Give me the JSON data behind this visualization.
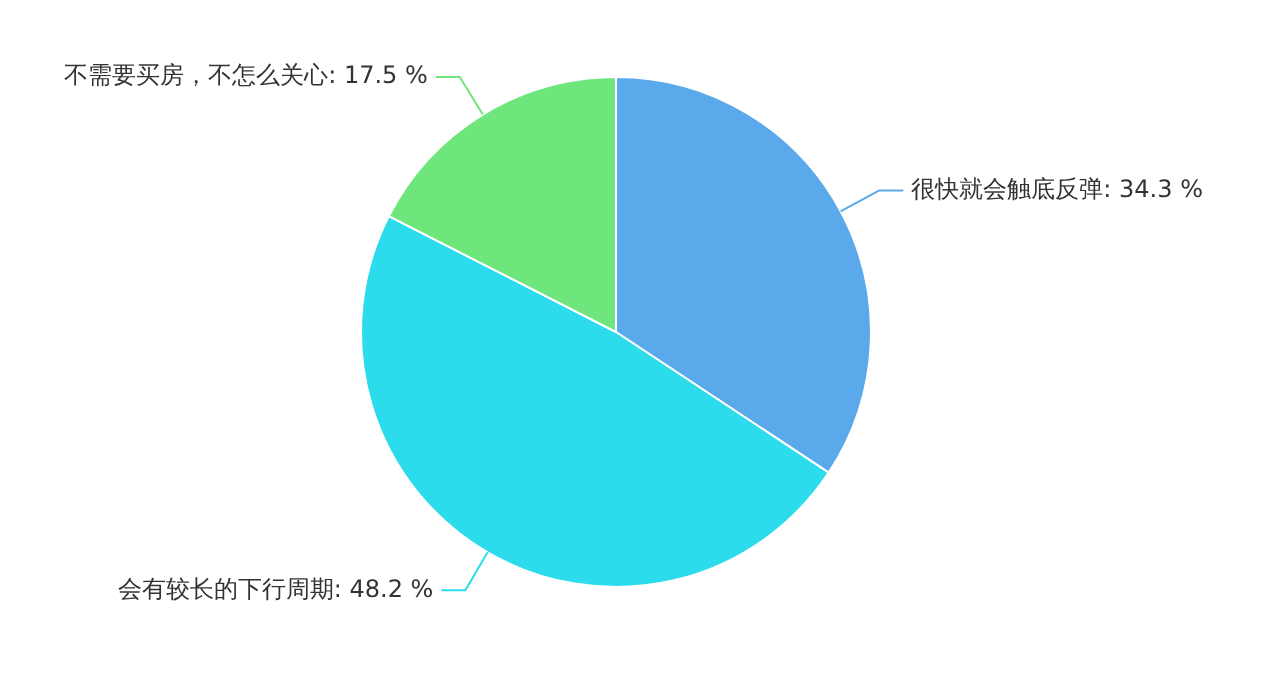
{
  "chart_data": {
    "type": "pie",
    "categories": [
      "很快就会触底反弹",
      "会有较长的下行周期",
      "不需要买房，不怎么关心"
    ],
    "values": [
      34.3,
      48.2,
      17.5
    ],
    "value_labels": [
      "34.3 %",
      "48.2 %",
      "17.5 %"
    ],
    "colors": [
      "#5aa9eb",
      "#2ddcec",
      "#6fe67c"
    ],
    "legend": false
  }
}
